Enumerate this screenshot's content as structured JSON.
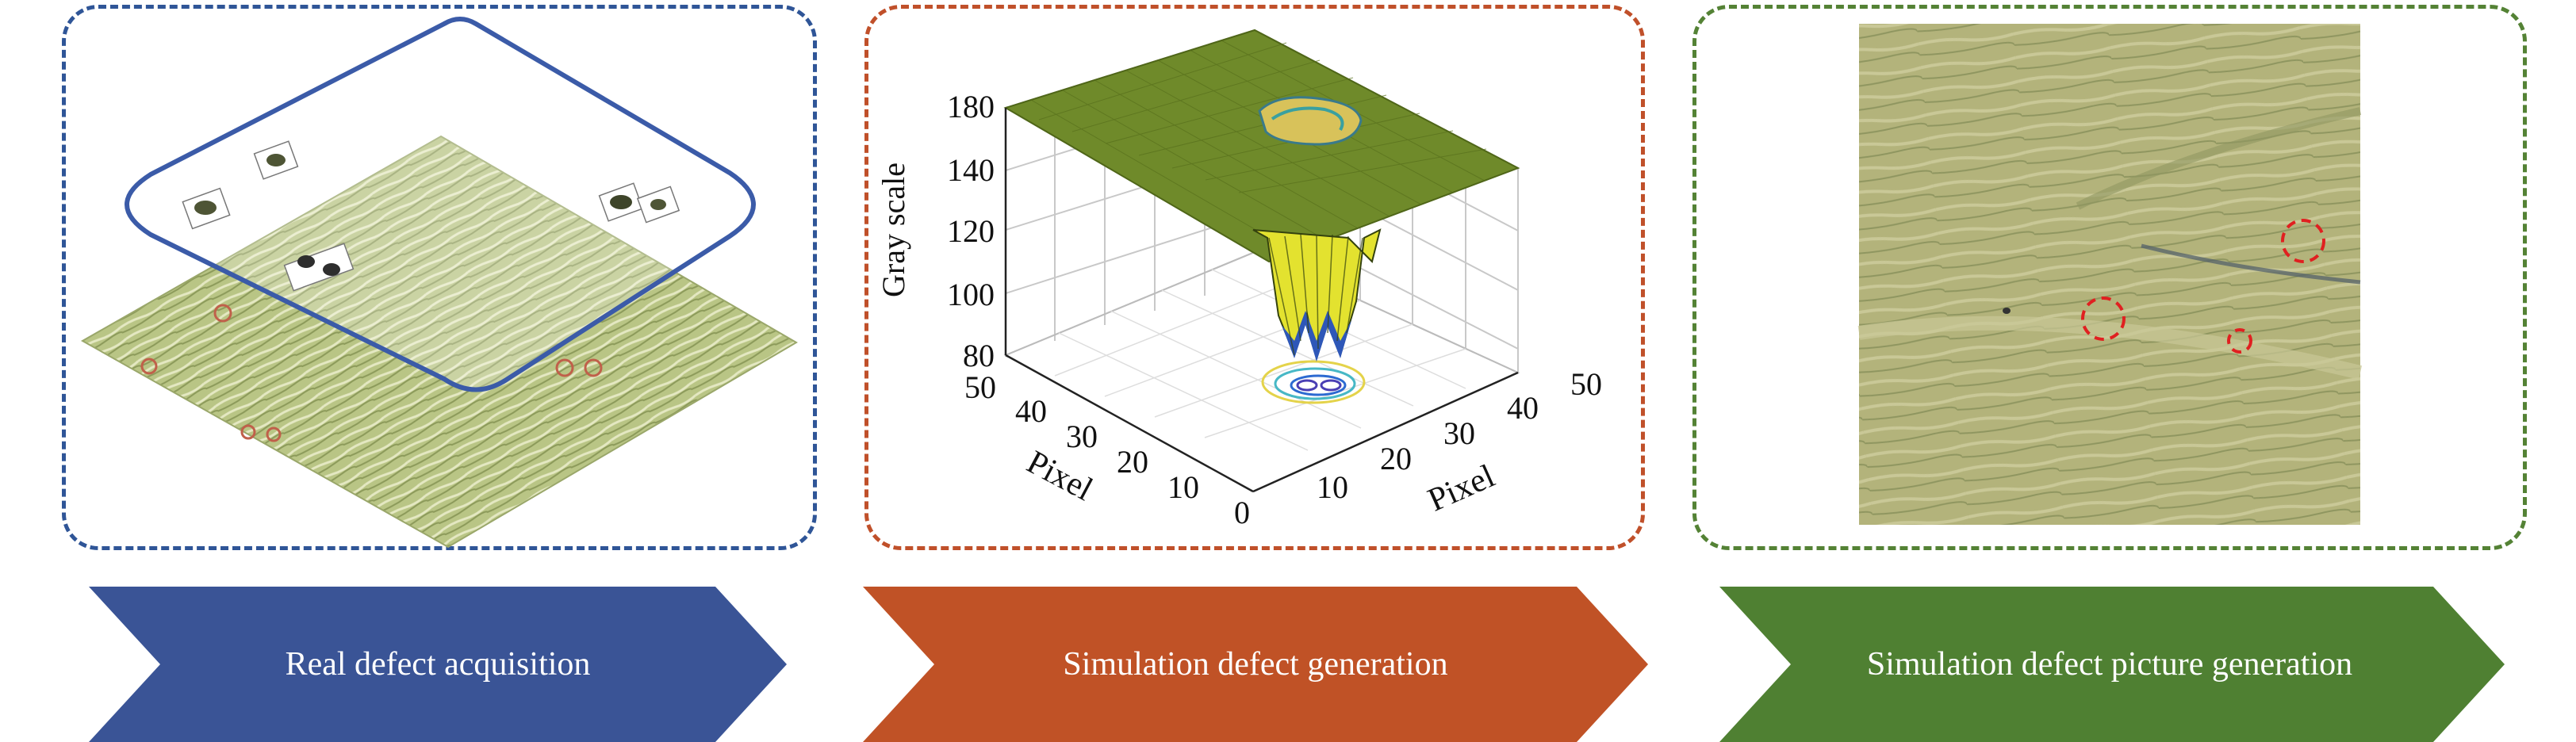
{
  "stages": [
    {
      "label": "Real defect acquisition",
      "color": "#3a5496"
    },
    {
      "label": "Simulation defect generation",
      "color": "#c05226"
    },
    {
      "label": "Simulation defect picture generation",
      "color": "#4f8032"
    }
  ],
  "panel_border_colors": [
    "#2f5597",
    "#c0502a",
    "#548235"
  ],
  "plot3d": {
    "zlabel": "Gray scale",
    "xlabel": "Pixel",
    "ylabel": "Pixel",
    "z_ticks": [
      "180",
      "140",
      "120",
      "100",
      "80"
    ],
    "left_axis_ticks": [
      "50",
      "40",
      "30",
      "20",
      "10",
      "0"
    ],
    "right_axis_ticks": [
      "10",
      "20",
      "30",
      "40",
      "50"
    ],
    "surface_colors": {
      "plateau": "#6f8a2a",
      "well": "#e3e22f",
      "deep": "#2e57b8"
    }
  },
  "wood_colors": {
    "light": "#c9cf9b",
    "dark": "#8c9a5a",
    "panel3_base": "#aeb07a"
  },
  "marker_color": "#e02020"
}
